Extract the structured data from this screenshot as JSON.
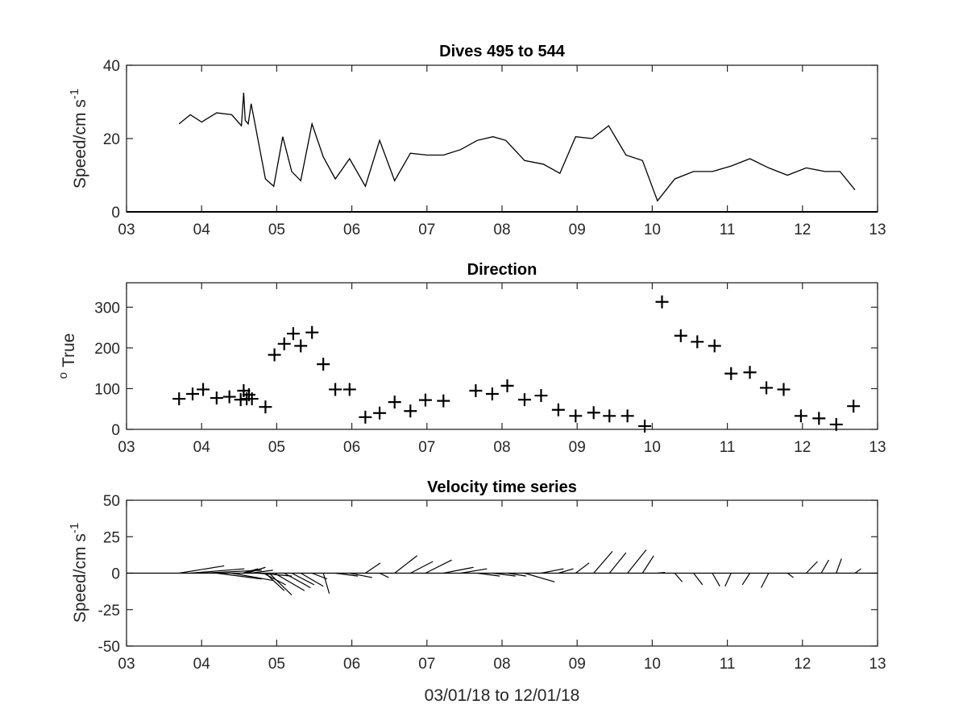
{
  "figure_xlabel": "03/01/18 to 12/01/18",
  "chart_data": [
    {
      "type": "line",
      "title": "Dives 495 to 544",
      "ylabel": "Speed/cm s",
      "ylabel_superscript": "-1",
      "xlim": [
        3,
        13
      ],
      "ylim": [
        0,
        40
      ],
      "xticks": [
        "03",
        "04",
        "05",
        "06",
        "07",
        "08",
        "09",
        "10",
        "11",
        "12",
        "13"
      ],
      "yticks": [
        "0",
        "20",
        "40"
      ],
      "x": [
        3.7,
        3.85,
        4.0,
        4.2,
        4.4,
        4.53,
        4.56,
        4.58,
        4.62,
        4.66,
        4.85,
        4.96,
        5.08,
        5.2,
        5.32,
        5.47,
        5.62,
        5.78,
        5.97,
        6.18,
        6.37,
        6.57,
        6.78,
        7.0,
        7.22,
        7.45,
        7.67,
        7.88,
        8.05,
        8.3,
        8.55,
        8.77,
        8.98,
        9.2,
        9.42,
        9.65,
        9.87,
        10.07,
        10.3,
        10.55,
        10.8,
        11.05,
        11.3,
        11.55,
        11.8,
        12.05,
        12.3,
        12.5,
        12.7
      ],
      "y": [
        24,
        26.5,
        24.5,
        27,
        26.5,
        23.5,
        32.5,
        25,
        24,
        29.5,
        9,
        7,
        20.5,
        11,
        8.5,
        24,
        15,
        9,
        14.5,
        7,
        19.5,
        8.5,
        16,
        15.5,
        15.5,
        17,
        19.5,
        20.5,
        19.5,
        14,
        13,
        10.5,
        20.5,
        20,
        23.5,
        15.5,
        14,
        3,
        9,
        11,
        11,
        12.5,
        14.5,
        12,
        10,
        12,
        11,
        11,
        6
      ]
    },
    {
      "type": "scatter",
      "title": "Direction",
      "ylabel": "True",
      "ylabel_superscript": "o",
      "xlim": [
        3,
        13
      ],
      "ylim": [
        0,
        360
      ],
      "xticks": [
        "03",
        "04",
        "05",
        "06",
        "07",
        "08",
        "09",
        "10",
        "11",
        "12",
        "13"
      ],
      "yticks": [
        "0",
        "100",
        "200",
        "300"
      ],
      "x": [
        3.7,
        3.88,
        4.02,
        4.2,
        4.37,
        4.52,
        4.56,
        4.6,
        4.63,
        4.67,
        4.85,
        4.97,
        5.1,
        5.22,
        5.32,
        5.47,
        5.62,
        5.78,
        5.97,
        6.18,
        6.37,
        6.57,
        6.78,
        6.98,
        7.22,
        7.65,
        7.87,
        8.07,
        8.3,
        8.52,
        8.75,
        8.98,
        9.22,
        9.43,
        9.67,
        9.9,
        10.13,
        10.38,
        10.6,
        10.83,
        11.05,
        11.3,
        11.52,
        11.75,
        11.98,
        12.22,
        12.45,
        12.68
      ],
      "y": [
        75,
        87,
        98,
        77,
        80,
        73,
        95,
        75,
        85,
        75,
        55,
        183,
        210,
        235,
        205,
        238,
        160,
        98,
        98,
        30,
        40,
        67,
        45,
        72,
        70,
        95,
        87,
        107,
        73,
        83,
        48,
        33,
        41,
        33,
        33,
        8,
        313,
        230,
        215,
        205,
        137,
        140,
        102,
        98,
        33,
        27,
        12,
        57
      ]
    },
    {
      "type": "quiver",
      "title": "Velocity time series",
      "ylabel": "Speed/cm s",
      "ylabel_superscript": "-1",
      "xlim": [
        3,
        13
      ],
      "ylim": [
        -50,
        50
      ],
      "xticks": [
        "03",
        "04",
        "05",
        "06",
        "07",
        "08",
        "09",
        "10",
        "11",
        "12",
        "13"
      ],
      "yticks": [
        "50",
        "25",
        "0",
        "-25",
        "-50"
      ],
      "sticks": [
        {
          "x": 3.7,
          "u": 0.6,
          "v": 5
        },
        {
          "x": 3.85,
          "u": 0.72,
          "v": 3
        },
        {
          "x": 4.0,
          "u": 0.8,
          "v": 2
        },
        {
          "x": 4.2,
          "u": 0.6,
          "v": -4
        },
        {
          "x": 4.4,
          "u": 0.55,
          "v": -5
        },
        {
          "x": 4.55,
          "u": 0.2,
          "v": 3
        },
        {
          "x": 4.6,
          "u": 0.25,
          "v": 4
        },
        {
          "x": 4.65,
          "u": 0.3,
          "v": 2
        },
        {
          "x": 4.75,
          "u": 0.45,
          "v": -2
        },
        {
          "x": 4.82,
          "u": 0.3,
          "v": -8
        },
        {
          "x": 4.85,
          "u": 0.25,
          "v": -12
        },
        {
          "x": 4.9,
          "u": 0.3,
          "v": -15
        },
        {
          "x": 4.97,
          "u": 0.4,
          "v": -12
        },
        {
          "x": 5.1,
          "u": 0.35,
          "v": -10
        },
        {
          "x": 5.2,
          "u": 0.3,
          "v": -8
        },
        {
          "x": 5.32,
          "u": 0.3,
          "v": -9
        },
        {
          "x": 5.47,
          "u": 0.2,
          "v": -4
        },
        {
          "x": 5.62,
          "u": 0.08,
          "v": -14
        },
        {
          "x": 5.78,
          "u": 0.3,
          "v": -2
        },
        {
          "x": 5.97,
          "u": 0.3,
          "v": -3
        },
        {
          "x": 6.18,
          "u": 0.2,
          "v": 7
        },
        {
          "x": 6.37,
          "u": 0.12,
          "v": -3
        },
        {
          "x": 6.57,
          "u": 0.3,
          "v": 12
        },
        {
          "x": 6.78,
          "u": 0.3,
          "v": 8
        },
        {
          "x": 6.98,
          "u": 0.35,
          "v": 9
        },
        {
          "x": 7.22,
          "u": 0.4,
          "v": 4
        },
        {
          "x": 7.45,
          "u": 0.35,
          "v": 3
        },
        {
          "x": 7.67,
          "u": 0.3,
          "v": -2
        },
        {
          "x": 7.88,
          "u": 0.3,
          "v": -2
        },
        {
          "x": 8.07,
          "u": 0.25,
          "v": -2
        },
        {
          "x": 8.3,
          "u": 0.4,
          "v": -6
        },
        {
          "x": 8.52,
          "u": 0.3,
          "v": 3
        },
        {
          "x": 8.75,
          "u": 0.2,
          "v": 3
        },
        {
          "x": 8.98,
          "u": 0.18,
          "v": 7
        },
        {
          "x": 9.22,
          "u": 0.25,
          "v": 15
        },
        {
          "x": 9.43,
          "u": 0.22,
          "v": 14
        },
        {
          "x": 9.67,
          "u": 0.25,
          "v": 16
        },
        {
          "x": 9.87,
          "u": 0.15,
          "v": 12
        },
        {
          "x": 10.07,
          "u": 0.1,
          "v": 0.5
        },
        {
          "x": 10.3,
          "u": 0.1,
          "v": -6
        },
        {
          "x": 10.55,
          "u": 0.12,
          "v": -8
        },
        {
          "x": 10.8,
          "u": 0.1,
          "v": -9
        },
        {
          "x": 11.05,
          "u": -0.08,
          "v": -9
        },
        {
          "x": 11.3,
          "u": -0.1,
          "v": -8
        },
        {
          "x": 11.55,
          "u": -0.1,
          "v": -10
        },
        {
          "x": 11.8,
          "u": 0.08,
          "v": -3
        },
        {
          "x": 12.05,
          "u": 0.15,
          "v": 8
        },
        {
          "x": 12.25,
          "u": 0.1,
          "v": 9
        },
        {
          "x": 12.45,
          "u": 0.07,
          "v": 10
        },
        {
          "x": 12.7,
          "u": 0.08,
          "v": 3
        }
      ]
    }
  ]
}
